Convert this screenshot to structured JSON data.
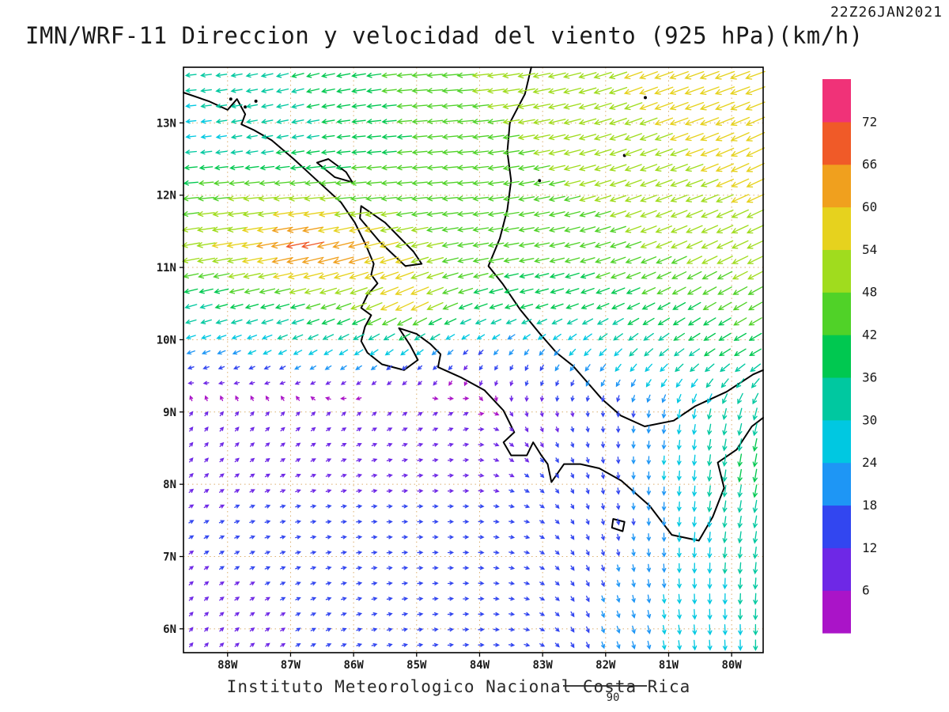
{
  "header": {
    "timestamp": "22Z26JAN2021",
    "title": "IMN/WRF-11 Direccion y velocidad del viento (925 hPa)(km/h)"
  },
  "footer": {
    "credit": "Instituto Meteorologico Nacional Costa Rica",
    "ref_label": "90"
  },
  "colors": {
    "graticule": "#dcaf6e",
    "coastline": "#000000",
    "frame": "#000000",
    "text": "#1a1a1a"
  },
  "chart_data": {
    "type": "heatmap",
    "subtype": "wind_vector_field",
    "model": "IMN/WRF-11",
    "variable": "Direccion y velocidad del viento",
    "level": "925 hPa",
    "units": "km/h",
    "valid_time": "22Z26JAN2021",
    "reference_vector_kmh": 90,
    "x_axis": {
      "label": "longitude",
      "range": [
        -88.7,
        -79.5
      ],
      "tick_values": [
        -88,
        -87,
        -86,
        -85,
        -84,
        -83,
        -82,
        -81,
        -80
      ],
      "ticks": [
        "88W",
        "87W",
        "86W",
        "85W",
        "84W",
        "83W",
        "82W",
        "81W",
        "80W"
      ]
    },
    "y_axis": {
      "label": "latitude",
      "range": [
        5.67,
        13.77
      ],
      "tick_values": [
        6,
        7,
        8,
        9,
        10,
        11,
        12,
        13
      ],
      "ticks": [
        "6N",
        "7N",
        "8N",
        "9N",
        "10N",
        "11N",
        "12N",
        "13N"
      ]
    },
    "colorbar": {
      "ticks": [
        6,
        12,
        18,
        24,
        30,
        36,
        42,
        48,
        54,
        60,
        66,
        72
      ],
      "colors": [
        "#aa14c8",
        "#6e28e6",
        "#3246f0",
        "#1e96f5",
        "#00c8e1",
        "#00c8a0",
        "#00c850",
        "#50d228",
        "#a0dc1e",
        "#e6d21e",
        "#f0a01e",
        "#f05a28",
        "#f03278"
      ]
    },
    "wind_grid": {
      "dir_convention": "direction arrow points, degrees math convention (0=E, 90=N)",
      "lats": [
        6.0,
        6.75,
        7.5,
        8.25,
        9.0,
        9.75,
        10.5,
        11.25,
        12.0,
        12.75,
        13.5
      ],
      "lons": [
        -88.7,
        -87.8,
        -86.9,
        -86.0,
        -85.1,
        -84.2,
        -83.3,
        -82.4,
        -81.5,
        -80.6,
        -79.7
      ],
      "speed_kmh": [
        [
          10,
          11,
          12,
          13,
          14,
          15,
          15,
          17,
          22,
          28,
          30
        ],
        [
          12,
          12,
          13,
          13,
          14,
          14,
          14,
          16,
          20,
          28,
          32
        ],
        [
          12,
          13,
          14,
          14,
          14,
          14,
          14,
          15,
          18,
          28,
          35
        ],
        [
          10,
          10,
          10,
          10,
          10,
          10,
          12,
          15,
          20,
          30,
          38
        ],
        [
          9,
          8,
          8,
          7,
          7,
          8,
          8,
          12,
          18,
          28,
          35
        ],
        [
          22,
          22,
          24,
          26,
          22,
          15,
          18,
          25,
          30,
          35,
          38
        ],
        [
          35,
          38,
          42,
          48,
          60,
          42,
          38,
          38,
          40,
          42,
          45
        ],
        [
          52,
          58,
          70,
          64,
          52,
          46,
          44,
          45,
          48,
          50,
          52
        ],
        [
          45,
          48,
          50,
          46,
          45,
          46,
          46,
          48,
          50,
          52,
          55
        ],
        [
          28,
          30,
          34,
          38,
          42,
          46,
          48,
          50,
          52,
          55,
          58
        ],
        [
          30,
          32,
          36,
          40,
          44,
          48,
          50,
          52,
          55,
          58,
          60
        ]
      ],
      "dir_deg": [
        [
          50,
          40,
          30,
          20,
          10,
          5,
          350,
          295,
          285,
          275,
          270
        ],
        [
          40,
          30,
          20,
          10,
          5,
          0,
          345,
          300,
          280,
          270,
          265
        ],
        [
          30,
          20,
          10,
          5,
          0,
          0,
          350,
          295,
          275,
          265,
          260
        ],
        [
          50,
          40,
          30,
          20,
          10,
          5,
          320,
          290,
          270,
          265,
          260
        ],
        [
          55,
          50,
          45,
          40,
          35,
          30,
          285,
          280,
          265,
          260,
          255
        ],
        [
          200,
          205,
          210,
          215,
          220,
          230,
          240,
          230,
          225,
          215,
          210
        ],
        [
          195,
          195,
          195,
          200,
          205,
          200,
          195,
          200,
          205,
          210,
          210
        ],
        [
          190,
          190,
          192,
          195,
          195,
          190,
          190,
          195,
          200,
          205,
          205
        ],
        [
          185,
          185,
          185,
          185,
          185,
          185,
          190,
          195,
          200,
          200,
          205
        ],
        [
          185,
          190,
          190,
          185,
          185,
          185,
          190,
          195,
          200,
          200,
          205
        ],
        [
          185,
          190,
          195,
          190,
          185,
          185,
          190,
          195,
          200,
          200,
          200
        ]
      ]
    },
    "coastlines": [
      [
        [
          -88.7,
          13.42
        ],
        [
          -88.3,
          13.3
        ],
        [
          -88.0,
          13.18
        ],
        [
          -87.85,
          13.33
        ],
        [
          -87.72,
          13.12
        ],
        [
          -87.78,
          12.98
        ],
        [
          -87.58,
          12.9
        ],
        [
          -87.3,
          12.76
        ],
        [
          -86.95,
          12.5
        ],
        [
          -86.55,
          12.18
        ],
        [
          -86.2,
          11.9
        ],
        [
          -85.98,
          11.62
        ],
        [
          -85.8,
          11.3
        ],
        [
          -85.68,
          11.05
        ],
        [
          -85.72,
          10.9
        ],
        [
          -85.62,
          10.78
        ],
        [
          -85.78,
          10.62
        ],
        [
          -85.88,
          10.44
        ],
        [
          -85.72,
          10.34
        ],
        [
          -85.82,
          10.18
        ],
        [
          -85.88,
          9.98
        ],
        [
          -85.78,
          9.82
        ],
        [
          -85.55,
          9.66
        ],
        [
          -85.2,
          9.58
        ],
        [
          -84.98,
          9.72
        ],
        [
          -85.1,
          9.92
        ],
        [
          -85.28,
          10.16
        ],
        [
          -85.0,
          10.08
        ],
        [
          -84.78,
          9.94
        ],
        [
          -84.62,
          9.8
        ],
        [
          -84.66,
          9.62
        ],
        [
          -84.3,
          9.48
        ],
        [
          -83.92,
          9.3
        ],
        [
          -83.62,
          9.02
        ],
        [
          -83.45,
          8.72
        ],
        [
          -83.62,
          8.58
        ],
        [
          -83.5,
          8.4
        ],
        [
          -83.25,
          8.4
        ],
        [
          -83.15,
          8.58
        ],
        [
          -83.02,
          8.4
        ],
        [
          -82.92,
          8.28
        ],
        [
          -82.86,
          8.03
        ],
        [
          -82.66,
          8.28
        ],
        [
          -82.4,
          8.28
        ],
        [
          -82.1,
          8.22
        ],
        [
          -81.75,
          8.05
        ],
        [
          -81.3,
          7.7
        ],
        [
          -80.95,
          7.3
        ],
        [
          -80.52,
          7.22
        ],
        [
          -80.3,
          7.55
        ],
        [
          -80.12,
          7.95
        ],
        [
          -80.22,
          8.3
        ],
        [
          -79.92,
          8.48
        ],
        [
          -79.68,
          8.8
        ],
        [
          -79.5,
          8.92
        ]
      ],
      [
        [
          -83.18,
          13.77
        ],
        [
          -83.28,
          13.4
        ],
        [
          -83.52,
          13.0
        ],
        [
          -83.56,
          12.6
        ],
        [
          -83.5,
          12.2
        ],
        [
          -83.56,
          11.8
        ],
        [
          -83.68,
          11.4
        ],
        [
          -83.86,
          11.02
        ],
        [
          -83.64,
          10.78
        ],
        [
          -83.36,
          10.42
        ],
        [
          -83.06,
          10.1
        ],
        [
          -82.78,
          9.82
        ],
        [
          -82.52,
          9.64
        ],
        [
          -82.3,
          9.42
        ],
        [
          -82.06,
          9.18
        ],
        [
          -81.76,
          8.95
        ],
        [
          -81.38,
          8.8
        ],
        [
          -80.92,
          8.88
        ],
        [
          -80.58,
          9.08
        ],
        [
          -80.08,
          9.28
        ],
        [
          -79.66,
          9.52
        ],
        [
          -79.5,
          9.58
        ]
      ],
      [
        [
          -85.88,
          11.85
        ],
        [
          -85.5,
          11.62
        ],
        [
          -85.05,
          11.22
        ],
        [
          -84.92,
          11.05
        ],
        [
          -85.18,
          11.02
        ],
        [
          -85.58,
          11.35
        ],
        [
          -85.9,
          11.68
        ],
        [
          -85.88,
          11.85
        ]
      ],
      [
        [
          -86.58,
          12.45
        ],
        [
          -86.3,
          12.25
        ],
        [
          -86.02,
          12.18
        ],
        [
          -86.12,
          12.32
        ],
        [
          -86.4,
          12.5
        ],
        [
          -86.58,
          12.45
        ]
      ],
      [
        [
          -81.88,
          7.52
        ],
        [
          -81.7,
          7.48
        ],
        [
          -81.73,
          7.35
        ],
        [
          -81.9,
          7.4
        ],
        [
          -81.88,
          7.52
        ]
      ]
    ],
    "islands": [
      [
        -87.95,
        13.33
      ],
      [
        -87.72,
        13.22
      ],
      [
        -87.55,
        13.3
      ],
      [
        -83.05,
        12.2
      ],
      [
        -81.7,
        12.55
      ],
      [
        -81.37,
        13.35
      ]
    ]
  }
}
